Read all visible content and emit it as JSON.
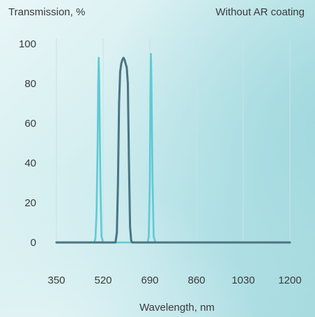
{
  "chart_data": {
    "type": "line",
    "title": "",
    "annotation": "Without AR coating",
    "ylabel": "Transmission, %",
    "xlabel": "Wavelength, nm",
    "xlim": [
      350,
      1200
    ],
    "ylim": [
      0,
      100
    ],
    "x_ticks": [
      "350",
      "520",
      "690",
      "860",
      "1030",
      "1200"
    ],
    "x_tick_values": [
      350,
      520,
      690,
      860,
      1030,
      1200
    ],
    "y_ticks": [
      "0",
      "20",
      "40",
      "60",
      "80",
      "100"
    ],
    "y_tick_values": [
      0,
      20,
      40,
      60,
      80,
      100
    ],
    "grid": "vertical",
    "series": [
      {
        "color": "#5fc9d6",
        "x": [
          350,
          488,
          492,
          496,
          500,
          502,
          504,
          506,
          510,
          514,
          520,
          670,
          682,
          686,
          690,
          692,
          694,
          696,
          700,
          704,
          710,
          1200
        ],
        "y": [
          0,
          0,
          2,
          15,
          50,
          80,
          93,
          80,
          30,
          3,
          0,
          0,
          0,
          3,
          30,
          75,
          95,
          80,
          30,
          3,
          0,
          0
        ]
      },
      {
        "color": "#4a7480",
        "x": [
          350,
          565,
          570,
          574,
          578,
          582,
          586,
          590,
          594,
          598,
          602,
          606,
          610,
          614,
          618,
          622,
          626,
          630,
          1200
        ],
        "y": [
          0,
          0,
          5,
          30,
          70,
          86,
          90,
          92,
          93,
          92,
          90,
          88,
          80,
          40,
          8,
          1,
          0,
          0,
          0
        ]
      }
    ]
  }
}
